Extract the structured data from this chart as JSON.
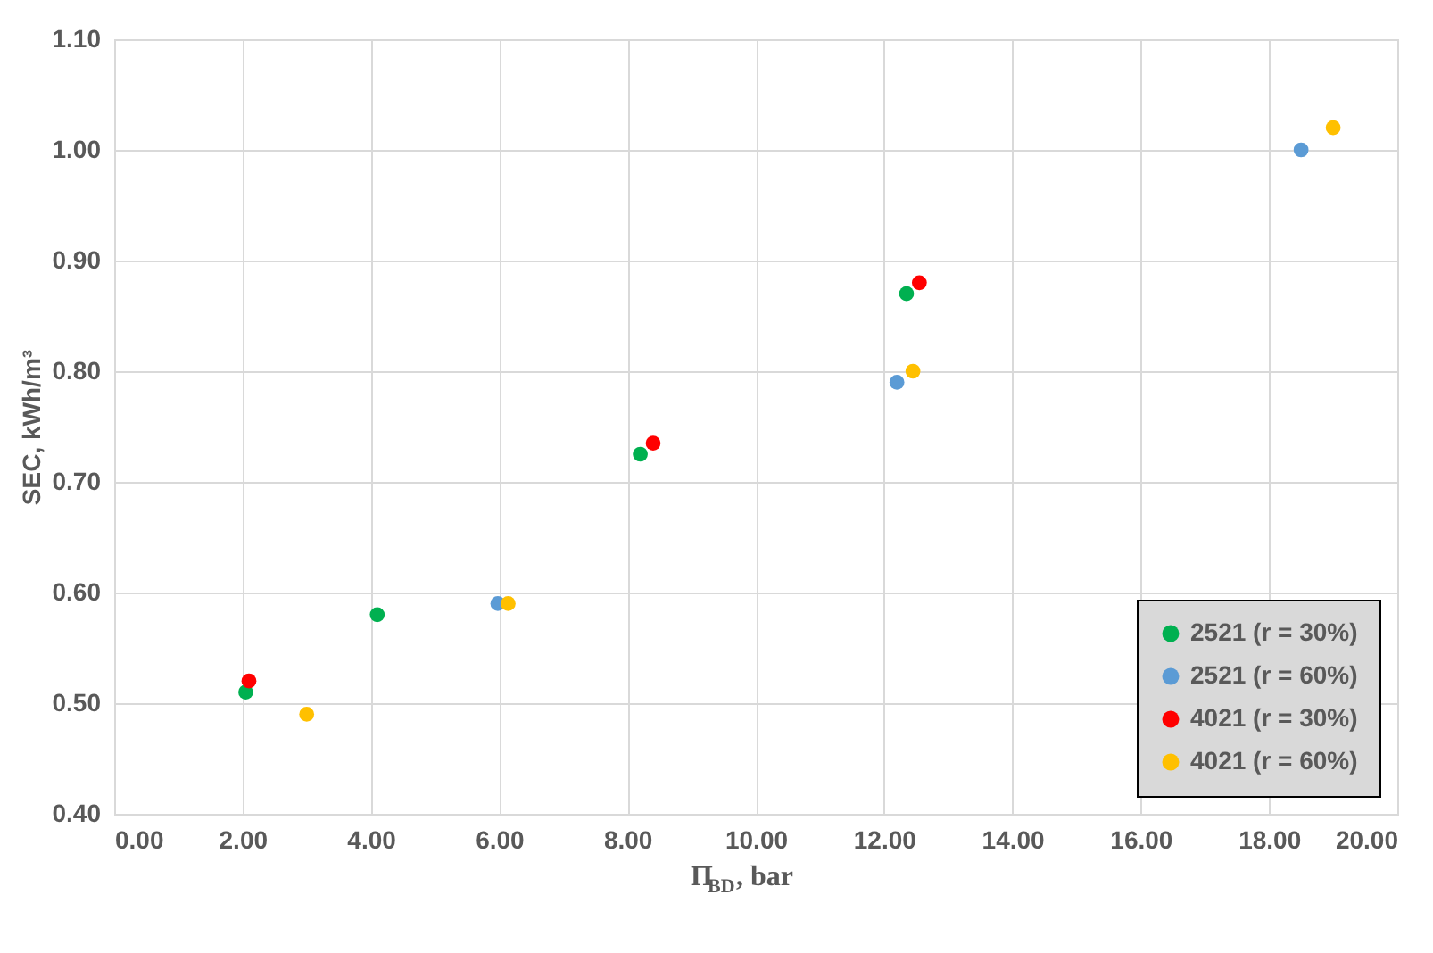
{
  "chart_data": {
    "type": "scatter",
    "xlabel": "Π$_{BD}$, bar",
    "ylabel": "SEC, kWh/m³",
    "series": [
      {
        "name": "2521 (r = 30%)",
        "color": "#00b050",
        "x": [
          2.05,
          4.1,
          8.2,
          12.35
        ],
        "values": [
          0.51,
          0.58,
          0.725,
          0.87
        ]
      },
      {
        "name": "2521 (r = 60%)",
        "color": "#5b9bd5",
        "x": [
          5.98,
          12.2,
          18.5
        ],
        "values": [
          0.59,
          0.79,
          1.0
        ]
      },
      {
        "name": "4021 (r = 30%)",
        "color": "#ff0000",
        "x": [
          2.1,
          8.4,
          12.55
        ],
        "values": [
          0.52,
          0.735,
          0.88
        ]
      },
      {
        "name": "4021 (r = 60%)",
        "color": "#ffc000",
        "x": [
          3.0,
          6.14,
          12.45,
          19.0
        ],
        "values": [
          0.49,
          0.59,
          0.8,
          1.02
        ]
      }
    ],
    "xlim": [
      0,
      20
    ],
    "xticks": [
      {
        "value": 0,
        "label": "0.00"
      },
      {
        "value": 2,
        "label": "2.00"
      },
      {
        "value": 4,
        "label": "4.00"
      },
      {
        "value": 6,
        "label": "6.00"
      },
      {
        "value": 8,
        "label": "8.00"
      },
      {
        "value": 10,
        "label": "10.00"
      },
      {
        "value": 12,
        "label": "12.00"
      },
      {
        "value": 14,
        "label": "14.00"
      },
      {
        "value": 16,
        "label": "16.00"
      },
      {
        "value": 18,
        "label": "18.00"
      },
      {
        "value": 20,
        "label": "20.00"
      }
    ],
    "ylim": [
      0.4,
      1.1
    ],
    "yticks": [
      {
        "value": 0.4,
        "label": "0.40"
      },
      {
        "value": 0.5,
        "label": "0.50"
      },
      {
        "value": 0.6,
        "label": "0.60"
      },
      {
        "value": 0.7,
        "label": "0.70"
      },
      {
        "value": 0.8,
        "label": "0.80"
      },
      {
        "value": 0.9,
        "label": "0.90"
      },
      {
        "value": 1.0,
        "label": "1.00"
      },
      {
        "value": 1.1,
        "label": "1.10"
      }
    ],
    "grid": true,
    "legend": "bottom right",
    "marker": "circle"
  }
}
